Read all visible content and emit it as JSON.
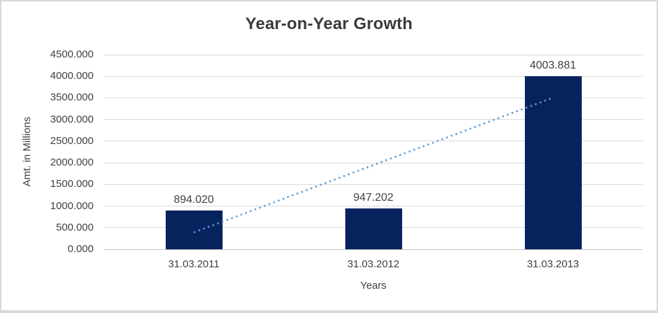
{
  "chart": {
    "colors": {
      "bar": "#07235e",
      "trendline": "#5b9bd5",
      "gridline": "#d9d9d9",
      "axis_line": "#c6c6c6",
      "text": "#404040",
      "title": "#3a3a3a",
      "frame_border": "#d8d8d8",
      "background": "#ffffff"
    }
  },
  "chart_data": {
    "type": "bar",
    "title": "Year-on-Year Growth",
    "xlabel": "Years",
    "ylabel": "Amt. in Millions",
    "categories": [
      "31.03.2011",
      "31.03.2012",
      "31.03.2013"
    ],
    "values": [
      894.02,
      947.202,
      4003.881
    ],
    "data_labels": [
      "894.020",
      "947.202",
      "4003.881"
    ],
    "ylim": [
      0,
      4500
    ],
    "ytick_step": 500,
    "ytick_labels": [
      "0.000",
      "500.000",
      "1000.000",
      "1500.000",
      "2000.000",
      "2500.000",
      "3000.000",
      "3500.000",
      "4000.000",
      "4500.000"
    ],
    "grid": true,
    "legend": "none",
    "trendline": {
      "style": "dotted",
      "color": "#5b9bd5",
      "start_value": 390,
      "end_value": 3505
    }
  }
}
